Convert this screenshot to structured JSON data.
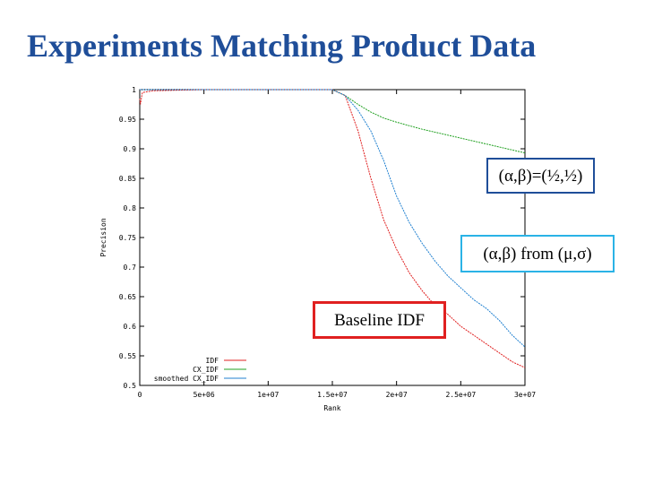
{
  "slide": {
    "title": "Experiments Matching Product Data"
  },
  "callouts": {
    "alpha_beta_half": "(α,β)=(½,½)",
    "alpha_beta_from_mu_sigma": "(α,β) from (μ,σ)",
    "baseline_idf": "Baseline IDF"
  },
  "chart_data": {
    "type": "line",
    "xlabel": "Rank",
    "ylabel": "Precision",
    "xlim": [
      0,
      30000000
    ],
    "ylim": [
      0.5,
      1.0
    ],
    "x_ticks": [
      0,
      5000000,
      10000000,
      15000000,
      20000000,
      25000000,
      30000000
    ],
    "x_tick_labels": [
      "0",
      "5e+06",
      "1e+07",
      "1.5e+07",
      "2e+07",
      "2.5e+07",
      "3e+07"
    ],
    "y_ticks": [
      0.5,
      0.55,
      0.6,
      0.65,
      0.7,
      0.75,
      0.8,
      0.85,
      0.9,
      0.95,
      1.0
    ],
    "y_tick_labels": [
      "0.5",
      "0.55",
      "0.6",
      "0.65",
      "0.7",
      "0.75",
      "0.8",
      "0.85",
      "0.9",
      "0.95",
      "1"
    ],
    "grid": false,
    "legend_position": "bottom-left",
    "series": [
      {
        "name": "IDF",
        "color": "#e02020",
        "x": [
          0,
          50000,
          200000,
          1000000,
          5000000,
          15000000,
          16000000,
          17000000,
          18000000,
          19000000,
          20000000,
          21000000,
          22000000,
          23000000,
          24000000,
          25000000,
          26000000,
          27000000,
          28000000,
          29000000,
          30000000
        ],
        "y": [
          0.985,
          0.975,
          0.995,
          0.998,
          1.0,
          1.0,
          0.99,
          0.93,
          0.85,
          0.78,
          0.73,
          0.69,
          0.66,
          0.635,
          0.62,
          0.6,
          0.585,
          0.57,
          0.555,
          0.54,
          0.53
        ]
      },
      {
        "name": "CX_IDF",
        "color": "#20a020",
        "x": [
          0,
          15000000,
          16000000,
          17000000,
          18000000,
          19000000,
          20000000,
          21000000,
          22000000,
          23000000,
          24000000,
          25000000,
          26000000,
          27000000,
          28000000,
          29000000,
          30000000
        ],
        "y": [
          1.0,
          1.0,
          0.99,
          0.975,
          0.962,
          0.952,
          0.945,
          0.939,
          0.933,
          0.928,
          0.923,
          0.918,
          0.913,
          0.908,
          0.903,
          0.898,
          0.893
        ]
      },
      {
        "name": "smoothed CX_IDF",
        "color": "#2080d0",
        "x": [
          0,
          15000000,
          16000000,
          17000000,
          18000000,
          19000000,
          20000000,
          21000000,
          22000000,
          23000000,
          24000000,
          25000000,
          26000000,
          27000000,
          28000000,
          29000000,
          30000000
        ],
        "y": [
          1.0,
          1.0,
          0.99,
          0.965,
          0.93,
          0.88,
          0.82,
          0.775,
          0.74,
          0.71,
          0.685,
          0.665,
          0.645,
          0.63,
          0.61,
          0.585,
          0.565
        ]
      }
    ]
  }
}
